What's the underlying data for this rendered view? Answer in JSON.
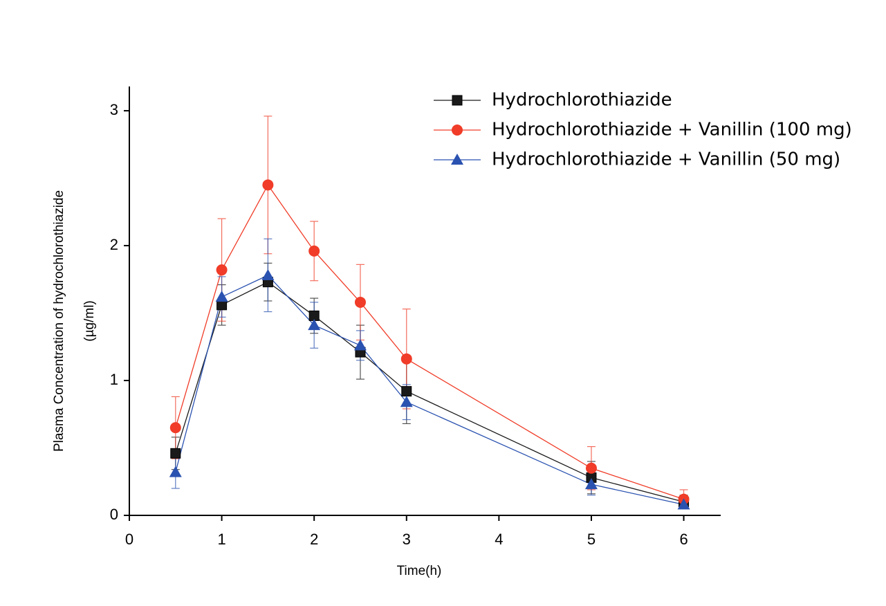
{
  "chart_data": {
    "type": "line",
    "xlabel": "Time(h)",
    "ylabel": [
      "Plasma Concentration of hydrochlorothiazide",
      "(µg/ml)"
    ],
    "x": [
      0.5,
      1,
      1.5,
      2,
      2.5,
      3,
      5,
      6
    ],
    "xlim": [
      0,
      6.4
    ],
    "xticks": [
      0,
      1,
      2,
      3,
      4,
      5,
      6
    ],
    "ylim": [
      0,
      3.18
    ],
    "yticks": [
      0,
      1,
      2,
      3
    ],
    "legend": "upper right",
    "series": [
      {
        "name": "Hydrochlorothiazide",
        "color": "#1a1a1a",
        "marker": "square",
        "values": [
          0.46,
          1.56,
          1.73,
          1.48,
          1.21,
          0.92,
          0.28,
          0.1
        ],
        "errors": [
          0.12,
          0.15,
          0.14,
          0.13,
          0.2,
          0.24,
          0.12,
          0.05
        ]
      },
      {
        "name": "Hydrochlorothiazide + Vanillin (100 mg)",
        "color": "#f03c28",
        "marker": "circle",
        "values": [
          0.65,
          1.82,
          2.45,
          1.96,
          1.58,
          1.16,
          0.35,
          0.12
        ],
        "errors": [
          0.23,
          0.38,
          0.51,
          0.22,
          0.28,
          0.37,
          0.16,
          0.07
        ]
      },
      {
        "name": "Hydrochlorothiazide + Vanillin (50 mg)",
        "color": "#2a52b0",
        "marker": "triangle",
        "values": [
          0.32,
          1.62,
          1.78,
          1.41,
          1.26,
          0.84,
          0.23,
          0.08
        ],
        "errors": [
          0.12,
          0.15,
          0.27,
          0.17,
          0.11,
          0.13,
          0.08,
          0.03
        ]
      }
    ]
  }
}
